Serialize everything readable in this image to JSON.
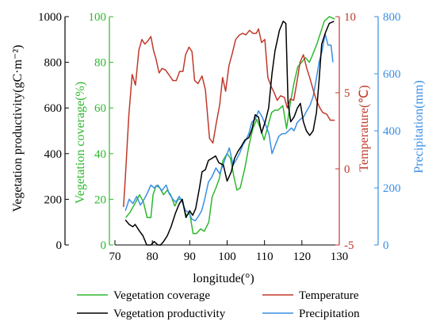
{
  "chart_data": {
    "type": "line",
    "x": {
      "label": "longitude(°)",
      "range": [
        70,
        130
      ],
      "ticks": [
        "70",
        "80",
        "90",
        "100",
        "110",
        "120",
        "130"
      ]
    },
    "axes": {
      "productivity": {
        "label": "Vegetation productivity(gC·m⁻²)",
        "range": [
          0,
          1000
        ],
        "ticks": [
          "0",
          "200",
          "400",
          "600",
          "800",
          "1000"
        ],
        "color": "#000000"
      },
      "coverage": {
        "label": "Vegetation coverage(%)",
        "range": [
          0,
          100
        ],
        "ticks": [
          "0",
          "20",
          "40",
          "60",
          "80",
          "100"
        ],
        "color": "#2eb82e"
      },
      "temperature": {
        "label": "Temperature(℃)",
        "range": [
          -5,
          10
        ],
        "ticks": [
          "-5",
          "0",
          "5",
          "10"
        ],
        "color": "#c0392b"
      },
      "precipitation": {
        "label": "Precipitation(mm)",
        "range": [
          0,
          800
        ],
        "ticks": [
          "0",
          "200",
          "400",
          "600",
          "800"
        ],
        "color": "#3a8ee6"
      }
    },
    "series": [
      {
        "name": "Vegetation coverage",
        "axis": "coverage",
        "color": "#2eb82e",
        "points": [
          [
            72.9,
            12
          ],
          [
            73.9,
            14
          ],
          [
            75.3,
            18
          ],
          [
            76.6,
            22
          ],
          [
            77.6,
            19
          ],
          [
            78.6,
            12
          ],
          [
            79.6,
            12
          ],
          [
            80.2,
            22
          ],
          [
            81.0,
            26
          ],
          [
            82.0,
            25
          ],
          [
            83.0,
            22
          ],
          [
            84.0,
            24
          ],
          [
            84.9,
            22
          ],
          [
            86.0,
            17
          ],
          [
            86.9,
            20
          ],
          [
            88.0,
            20
          ],
          [
            89.0,
            13
          ],
          [
            90.0,
            14
          ],
          [
            90.9,
            5
          ],
          [
            91.8,
            5
          ],
          [
            92.9,
            7
          ],
          [
            93.9,
            6
          ],
          [
            95.1,
            10
          ],
          [
            96.0,
            21
          ],
          [
            97.0,
            25
          ],
          [
            97.9,
            29
          ],
          [
            98.9,
            37
          ],
          [
            100.0,
            40
          ],
          [
            100.9,
            38
          ],
          [
            101.8,
            30
          ],
          [
            102.6,
            24
          ],
          [
            103.5,
            25
          ],
          [
            104.8,
            34
          ],
          [
            105.9,
            44
          ],
          [
            106.9,
            51
          ],
          [
            107.9,
            55
          ],
          [
            108.9,
            51
          ],
          [
            109.9,
            46
          ],
          [
            110.9,
            52
          ],
          [
            111.9,
            58
          ],
          [
            112.7,
            59
          ],
          [
            113.6,
            59
          ],
          [
            114.9,
            61
          ],
          [
            115.9,
            51
          ],
          [
            116.9,
            62
          ],
          [
            117.9,
            71
          ],
          [
            118.9,
            78
          ],
          [
            119.9,
            80
          ],
          [
            121.0,
            82
          ],
          [
            122.0,
            80
          ],
          [
            122.8,
            83
          ],
          [
            124.0,
            88
          ],
          [
            125.0,
            93
          ],
          [
            126.0,
            98
          ],
          [
            127.3,
            100
          ],
          [
            128.8,
            99
          ]
        ]
      },
      {
        "name": "Temperature",
        "axis": "temperature",
        "color": "#c0392b",
        "points": [
          [
            72.3,
            -2.5
          ],
          [
            72.8,
            -0.5
          ],
          [
            73.7,
            3.5
          ],
          [
            74.6,
            6.2
          ],
          [
            75.5,
            5.5
          ],
          [
            76.4,
            7.8
          ],
          [
            77.2,
            8.5
          ],
          [
            78.0,
            8.2
          ],
          [
            78.8,
            8.4
          ],
          [
            79.6,
            8.7
          ],
          [
            80.3,
            7.8
          ],
          [
            81.0,
            7.2
          ],
          [
            81.8,
            6.3
          ],
          [
            82.6,
            6.6
          ],
          [
            83.5,
            6.5
          ],
          [
            84.4,
            6.2
          ],
          [
            85.5,
            5.8
          ],
          [
            86.4,
            5.8
          ],
          [
            87.3,
            6.4
          ],
          [
            88.2,
            6.4
          ],
          [
            88.9,
            7.5
          ],
          [
            89.8,
            8.0
          ],
          [
            90.6,
            7.7
          ],
          [
            91.3,
            5.8
          ],
          [
            92.2,
            5.6
          ],
          [
            93.3,
            6.1
          ],
          [
            94.2,
            5.2
          ],
          [
            95.3,
            2.0
          ],
          [
            96.2,
            1.7
          ],
          [
            97.1,
            3.0
          ],
          [
            98.0,
            4.2
          ],
          [
            98.8,
            6.0
          ],
          [
            99.6,
            5.1
          ],
          [
            100.5,
            6.8
          ],
          [
            101.4,
            7.6
          ],
          [
            102.3,
            8.5
          ],
          [
            103.3,
            8.8
          ],
          [
            104.2,
            8.9
          ],
          [
            105.0,
            8.8
          ],
          [
            106.0,
            9.1
          ],
          [
            106.9,
            8.9
          ],
          [
            107.8,
            8.9
          ],
          [
            108.4,
            9.2
          ],
          [
            109.2,
            8.3
          ],
          [
            110.1,
            8.5
          ],
          [
            110.9,
            6.0
          ],
          [
            111.8,
            5.4
          ],
          [
            112.6,
            5.0
          ],
          [
            113.4,
            4.5
          ],
          [
            114.3,
            4.8
          ],
          [
            115.3,
            4.7
          ],
          [
            116.1,
            4.0
          ],
          [
            116.9,
            4.6
          ],
          [
            117.8,
            4.5
          ],
          [
            118.6,
            5.6
          ],
          [
            119.5,
            7.0
          ],
          [
            120.4,
            7.5
          ],
          [
            121.3,
            6.6
          ],
          [
            122.1,
            6.0
          ],
          [
            123.0,
            5.2
          ],
          [
            123.9,
            4.5
          ],
          [
            124.8,
            4.0
          ],
          [
            125.6,
            3.7
          ],
          [
            126.6,
            3.6
          ],
          [
            127.6,
            3.2
          ],
          [
            128.8,
            3.2
          ]
        ]
      },
      {
        "name": "Vegetation productivity",
        "axis": "productivity",
        "color": "#000000",
        "points": [
          [
            72.8,
            110
          ],
          [
            73.8,
            90
          ],
          [
            74.8,
            80
          ],
          [
            75.4,
            90
          ],
          [
            76.6,
            60
          ],
          [
            77.5,
            40
          ],
          [
            78.5,
            0
          ],
          [
            79.6,
            0
          ],
          [
            80.5,
            15
          ],
          [
            81.5,
            0
          ],
          [
            82.2,
            0
          ],
          [
            83.0,
            15
          ],
          [
            84.0,
            40
          ],
          [
            85.0,
            80
          ],
          [
            86.2,
            140
          ],
          [
            87.2,
            180
          ],
          [
            88.0,
            200
          ],
          [
            89.0,
            120
          ],
          [
            90.0,
            150
          ],
          [
            90.8,
            130
          ],
          [
            91.6,
            160
          ],
          [
            92.6,
            250
          ],
          [
            93.3,
            320
          ],
          [
            94.2,
            330
          ],
          [
            95.0,
            370
          ],
          [
            96.0,
            380
          ],
          [
            96.9,
            390
          ],
          [
            97.8,
            360
          ],
          [
            99.0,
            350
          ],
          [
            100.0,
            280
          ],
          [
            101.1,
            320
          ],
          [
            102.0,
            380
          ],
          [
            102.9,
            410
          ],
          [
            103.7,
            430
          ],
          [
            104.8,
            460
          ],
          [
            105.8,
            470
          ],
          [
            106.7,
            510
          ],
          [
            107.5,
            570
          ],
          [
            108.4,
            560
          ],
          [
            109.2,
            490
          ],
          [
            110.2,
            540
          ],
          [
            111.1,
            600
          ],
          [
            112.0,
            750
          ],
          [
            112.8,
            850
          ],
          [
            114.0,
            940
          ],
          [
            115.0,
            980
          ],
          [
            115.7,
            970
          ],
          [
            116.3,
            620
          ],
          [
            117.0,
            540
          ],
          [
            117.9,
            560
          ],
          [
            118.8,
            600
          ],
          [
            119.6,
            620
          ],
          [
            120.4,
            540
          ],
          [
            121.2,
            500
          ],
          [
            122.1,
            480
          ],
          [
            123.0,
            500
          ],
          [
            123.9,
            580
          ],
          [
            124.6,
            720
          ],
          [
            125.3,
            880
          ],
          [
            126.3,
            930
          ],
          [
            127.3,
            970
          ],
          [
            128.6,
            980
          ]
        ]
      },
      {
        "name": "Precipitation",
        "axis": "precipitation",
        "color": "#3a8ee6",
        "points": [
          [
            72.8,
            120
          ],
          [
            73.8,
            160
          ],
          [
            74.8,
            145
          ],
          [
            75.8,
            170
          ],
          [
            76.8,
            140
          ],
          [
            77.8,
            160
          ],
          [
            78.6,
            180
          ],
          [
            79.6,
            210
          ],
          [
            80.5,
            200
          ],
          [
            81.5,
            210
          ],
          [
            82.5,
            190
          ],
          [
            83.7,
            210
          ],
          [
            84.5,
            180
          ],
          [
            85.5,
            160
          ],
          [
            86.3,
            150
          ],
          [
            87.2,
            170
          ],
          [
            88.0,
            150
          ],
          [
            88.9,
            120
          ],
          [
            89.7,
            115
          ],
          [
            90.6,
            90
          ],
          [
            91.5,
            85
          ],
          [
            92.3,
            100
          ],
          [
            93.2,
            120
          ],
          [
            94.0,
            160
          ],
          [
            95.0,
            220
          ],
          [
            96.0,
            240
          ],
          [
            97.0,
            270
          ],
          [
            98.0,
            250
          ],
          [
            98.9,
            280
          ],
          [
            99.7,
            310
          ],
          [
            100.6,
            340
          ],
          [
            101.6,
            280
          ],
          [
            102.5,
            300
          ],
          [
            103.3,
            320
          ],
          [
            104.2,
            350
          ],
          [
            105.1,
            370
          ],
          [
            105.8,
            390
          ],
          [
            106.6,
            430
          ],
          [
            107.5,
            440
          ],
          [
            108.4,
            470
          ],
          [
            109.3,
            450
          ],
          [
            110.3,
            420
          ],
          [
            111.2,
            390
          ],
          [
            112.0,
            320
          ],
          [
            112.9,
            350
          ],
          [
            113.8,
            380
          ],
          [
            114.7,
            390
          ],
          [
            115.6,
            390
          ],
          [
            116.4,
            400
          ],
          [
            117.2,
            410
          ],
          [
            117.9,
            400
          ],
          [
            118.8,
            430
          ],
          [
            119.6,
            440
          ],
          [
            120.5,
            450
          ],
          [
            121.3,
            470
          ],
          [
            122.2,
            490
          ],
          [
            123.0,
            520
          ],
          [
            123.7,
            570
          ],
          [
            124.6,
            640
          ],
          [
            125.4,
            680
          ],
          [
            126.2,
            740
          ],
          [
            127.0,
            700
          ],
          [
            127.8,
            700
          ],
          [
            128.3,
            640
          ]
        ]
      }
    ],
    "legend": {
      "placement": "bottom",
      "entries": [
        {
          "label": "Vegetation coverage",
          "color": "#2eb82e"
        },
        {
          "label": "Temperature",
          "color": "#c0392b"
        },
        {
          "label": "Vegetation productivity",
          "color": "#000000"
        },
        {
          "label": "Precipitation",
          "color": "#3a8ee6"
        }
      ]
    },
    "grid": false
  }
}
